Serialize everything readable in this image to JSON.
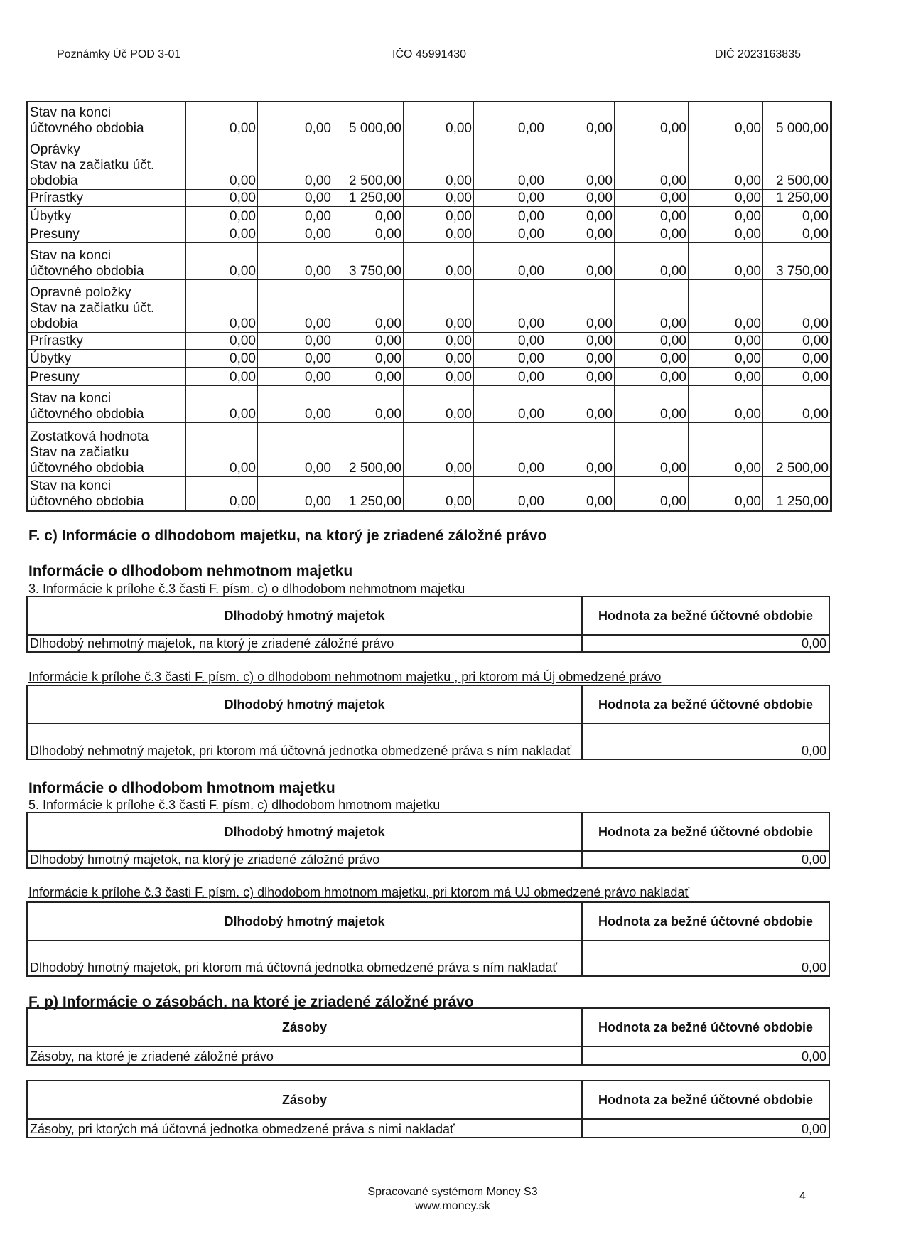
{
  "header": {
    "left": "Poznámky Úč POD 3-01",
    "center": "IČO 45991430",
    "right": "DIČ 2023163835"
  },
  "asset_table": {
    "rows": [
      {
        "label": [
          "Stav na konci",
          "účtovného obdobia"
        ],
        "values": [
          "0,00",
          "0,00",
          "5 000,00",
          "0,00",
          "0,00",
          "0,00",
          "0,00",
          "0,00",
          "5 000,00"
        ]
      },
      {
        "label": [
          "Oprávky",
          "Stav na začiatku účt.",
          "obdobia"
        ],
        "values": [
          "0,00",
          "0,00",
          "2 500,00",
          "0,00",
          "0,00",
          "0,00",
          "0,00",
          "0,00",
          "2 500,00"
        ]
      },
      {
        "label": [
          "Prírastky"
        ],
        "values": [
          "0,00",
          "0,00",
          "1 250,00",
          "0,00",
          "0,00",
          "0,00",
          "0,00",
          "0,00",
          "1 250,00"
        ]
      },
      {
        "label": [
          "Úbytky"
        ],
        "values": [
          "0,00",
          "0,00",
          "0,00",
          "0,00",
          "0,00",
          "0,00",
          "0,00",
          "0,00",
          "0,00"
        ]
      },
      {
        "label": [
          "Presuny"
        ],
        "values": [
          "0,00",
          "0,00",
          "0,00",
          "0,00",
          "0,00",
          "0,00",
          "0,00",
          "0,00",
          "0,00"
        ]
      },
      {
        "label": [
          "Stav na konci",
          "účtovného obdobia"
        ],
        "values": [
          "0,00",
          "0,00",
          "3 750,00",
          "0,00",
          "0,00",
          "0,00",
          "0,00",
          "0,00",
          "3 750,00"
        ]
      },
      {
        "label": [
          "Opravné položky",
          "Stav na začiatku účt.",
          "obdobia"
        ],
        "values": [
          "0,00",
          "0,00",
          "0,00",
          "0,00",
          "0,00",
          "0,00",
          "0,00",
          "0,00",
          "0,00"
        ]
      },
      {
        "label": [
          "Prírastky"
        ],
        "values": [
          "0,00",
          "0,00",
          "0,00",
          "0,00",
          "0,00",
          "0,00",
          "0,00",
          "0,00",
          "0,00"
        ]
      },
      {
        "label": [
          "Úbytky"
        ],
        "values": [
          "0,00",
          "0,00",
          "0,00",
          "0,00",
          "0,00",
          "0,00",
          "0,00",
          "0,00",
          "0,00"
        ]
      },
      {
        "label": [
          "Presuny"
        ],
        "values": [
          "0,00",
          "0,00",
          "0,00",
          "0,00",
          "0,00",
          "0,00",
          "0,00",
          "0,00",
          "0,00"
        ]
      },
      {
        "label": [
          "Stav na konci",
          "účtovného obdobia"
        ],
        "values": [
          "0,00",
          "0,00",
          "0,00",
          "0,00",
          "0,00",
          "0,00",
          "0,00",
          "0,00",
          "0,00"
        ]
      },
      {
        "label": [
          "Zostatková hodnota",
          "Stav na začiatku",
          "účtovného obdobia"
        ],
        "values": [
          "0,00",
          "0,00",
          "2 500,00",
          "0,00",
          "0,00",
          "0,00",
          "0,00",
          "0,00",
          "2 500,00"
        ]
      },
      {
        "label": [
          "Stav na konci",
          "účtovného obdobia"
        ],
        "values": [
          "0,00",
          "0,00",
          "1 250,00",
          "0,00",
          "0,00",
          "0,00",
          "0,00",
          "0,00",
          "1 250,00"
        ]
      }
    ]
  },
  "section_fc": {
    "title": "F. c) Informácie o dlhodobom majetku, na ktorý je zriadené záložné právo",
    "intangible": {
      "title": "Informácie o dlhodobom nehmotnom majetku",
      "pledged": {
        "caption": "3. Informácie k prílohe č.3 časti F. písm. c) o dlhodobom nehmotnom majetku",
        "header": [
          "Dlhodobý hmotný majetok",
          "Hodnota za bežné účtovné obdobie"
        ],
        "row": [
          "Dlhodobý nehmotný majetok, na ktorý je zriadené záložné právo",
          "0,00"
        ]
      },
      "restricted": {
        "caption": "Informácie k prílohe č.3 časti F. písm. c)  o dlhodobom nehmotnom majetku , pri ktorom má Új obmedzené právo",
        "header": [
          "Dlhodobý hmotný majetok",
          "Hodnota za bežné účtovné obdobie"
        ],
        "row": [
          "Dlhodobý nehmotný majetok, pri ktorom má účtovná jednotka obmedzené práva s ním nakladať",
          "0,00"
        ]
      }
    },
    "tangible": {
      "title": "Informácie o dlhodobom hmotnom majetku",
      "pledged": {
        "caption": "5. Informácie k prílohe č.3 časti F. písm. c)   dlhodobom hmotnom majetku",
        "header": [
          "Dlhodobý hmotný majetok",
          "Hodnota za bežné účtovné obdobie"
        ],
        "row": [
          "Dlhodobý hmotný majetok, na ktorý je zriadené záložné právo",
          "0,00"
        ]
      },
      "restricted": {
        "caption": "Informácie k prílohe č.3 časti F. písm. c)   dlhodobom hmotnom majetku, pri ktorom má UJ obmedzené právo nakladať",
        "header": [
          "Dlhodobý hmotný majetok",
          "Hodnota za bežné účtovné obdobie"
        ],
        "row": [
          "Dlhodobý hmotný majetok, pri ktorom má účtovná jednotka obmedzené práva s ním nakladať",
          "0,00"
        ]
      }
    }
  },
  "section_fp": {
    "title": "F. p) Informácie o zásobách, na ktoré je zriadené záložné právo",
    "pledged": {
      "header": [
        "Zásoby",
        "Hodnota za bežné účtovné obdobie"
      ],
      "row": [
        "Zásoby, na ktoré je zriadené záložné právo",
        "0,00"
      ]
    },
    "restricted": {
      "header": [
        "Zásoby",
        "Hodnota za bežné účtovné obdobie"
      ],
      "row": [
        "Zásoby, pri ktorých má účtovná jednotka obmedzené práva s nimi nakladať",
        "0,00"
      ]
    }
  },
  "footer": {
    "line1": "Spracované systémom Money S3",
    "line2": "www.money.sk",
    "page": "4"
  }
}
